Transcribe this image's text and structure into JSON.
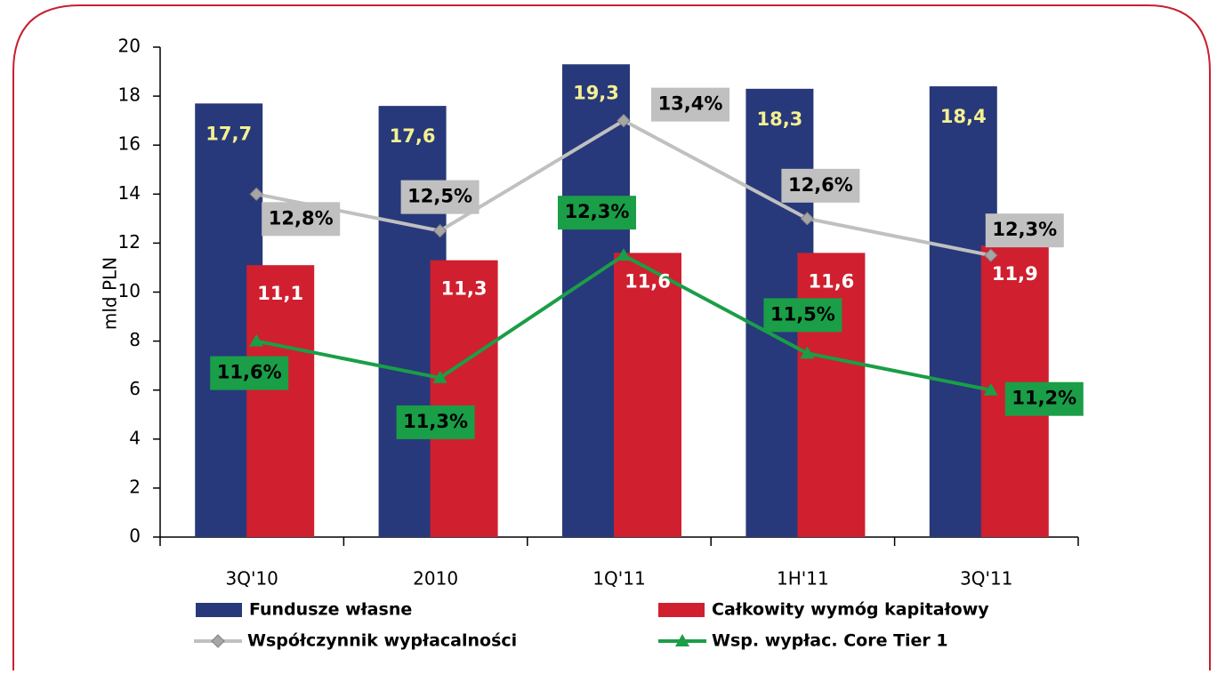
{
  "chart_data": {
    "type": "bar",
    "y_axis_label": "mld PLN",
    "categories": [
      "3Q'10",
      "2010",
      "1Q'11",
      "1H'11",
      "3Q'11"
    ],
    "ylim": [
      0,
      20
    ],
    "yticks": [
      0,
      2,
      4,
      6,
      8,
      10,
      12,
      14,
      16,
      18,
      20
    ],
    "y2lim": [
      10,
      14
    ],
    "series": [
      {
        "name": "Fundusze własne",
        "type": "bar",
        "color": "#27397a",
        "values": [
          17.7,
          17.6,
          19.3,
          18.3,
          18.4
        ],
        "value_labels": [
          "17,7",
          "17,6",
          "19,3",
          "18,3",
          "18,4"
        ]
      },
      {
        "name": "Całkowity wymóg kapitałowy",
        "type": "bar",
        "color": "#d01f2f",
        "values": [
          11.1,
          11.3,
          11.6,
          11.6,
          11.9
        ],
        "value_labels": [
          "11,1",
          "11,3",
          "11,6",
          "11,6",
          "11,9"
        ]
      },
      {
        "name": "Współczynnik wypłacalności",
        "type": "line",
        "axis": "y2",
        "color": "#c0c0c0",
        "values": [
          12.8,
          12.5,
          13.4,
          12.6,
          12.3
        ],
        "value_labels": [
          "12,8%",
          "12,5%",
          "13,4%",
          "12,6%",
          "12,3%"
        ]
      },
      {
        "name": "Wsp. wypłac. Core Tier 1",
        "type": "line",
        "axis": "y2",
        "color": "#1a9e47",
        "values": [
          11.6,
          11.3,
          12.3,
          11.5,
          11.2
        ],
        "value_labels": [
          "11,6%",
          "11,3%",
          "12,3%",
          "11,5%",
          "11,2%"
        ]
      }
    ]
  }
}
